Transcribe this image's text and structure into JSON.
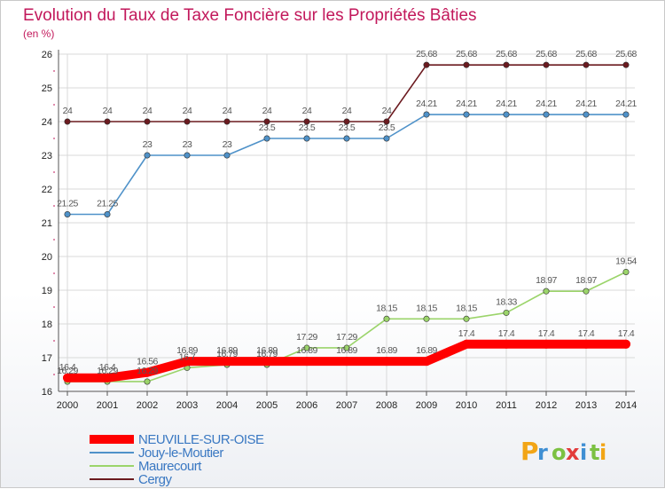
{
  "chart_data": {
    "type": "line",
    "title": "Evolution du Taux de Taxe Foncière sur les Propriétés Bâties",
    "subtitle": "(en %)",
    "x": [
      "2000",
      "2001",
      "2002",
      "2003",
      "2004",
      "2005",
      "2006",
      "2007",
      "2008",
      "2009",
      "2010",
      "2011",
      "2012",
      "2013",
      "2014"
    ],
    "ylim": [
      16,
      26
    ],
    "yticks": [
      "16",
      "17",
      "18",
      "19",
      "20",
      "21",
      "22",
      "23",
      "24",
      "25",
      "26"
    ],
    "grid": true,
    "legend_position": "bottom-left",
    "series": [
      {
        "name": "Cergy",
        "color": "#6b1a1f",
        "values": [
          24,
          24,
          24,
          24,
          24,
          24,
          24,
          24,
          24,
          25.68,
          25.68,
          25.68,
          25.68,
          25.68,
          25.68
        ],
        "labels": [
          "24",
          "24",
          "24",
          "24",
          "24",
          "24",
          "24",
          "24",
          "24",
          "25.68",
          "25.68",
          "25.68",
          "25.68",
          "25.68",
          "25.68"
        ]
      },
      {
        "name": "Jouy-le-Moutier",
        "color": "#4f92c9",
        "values": [
          21.25,
          21.25,
          23,
          23,
          23,
          23.5,
          23.5,
          23.5,
          23.5,
          24.21,
          24.21,
          24.21,
          24.21,
          24.21,
          24.21
        ],
        "labels": [
          "21.25",
          "21.25",
          "23",
          "23",
          "23",
          "23.5",
          "23.5",
          "23.5",
          "23.5",
          "24.21",
          "24.21",
          "24.21",
          "24.21",
          "24.21",
          "24.21"
        ]
      },
      {
        "name": "Maurecourt",
        "color": "#9bd46a",
        "values": [
          16.29,
          16.29,
          16.29,
          16.7,
          16.79,
          16.79,
          17.29,
          17.29,
          18.15,
          18.15,
          18.15,
          18.33,
          18.97,
          18.97,
          19.54
        ],
        "labels": [
          "16.29",
          "16.29",
          "16.29",
          "16.7",
          "16.79",
          "16.79",
          "17.29",
          "17.29",
          "18.15",
          "18.15",
          "18.15",
          "18.33",
          "18.97",
          "18.97",
          "19.54"
        ]
      },
      {
        "name": "NEUVILLE-SUR-OISE",
        "color": "#ff0000",
        "values": [
          16.4,
          16.4,
          16.56,
          16.89,
          16.89,
          16.89,
          16.89,
          16.89,
          16.89,
          16.89,
          17.4,
          17.4,
          17.4,
          17.4,
          17.4
        ],
        "labels": [
          "16.4",
          "16.4",
          "16.56",
          "16.89",
          "16.89",
          "16.89",
          "16.89",
          "16.89",
          "16.89",
          "16.89",
          "17.4",
          "17.4",
          "17.4",
          "17.4",
          "17.4"
        ]
      }
    ],
    "legend_order": [
      "NEUVILLE-SUR-OISE",
      "Jouy-le-Moutier",
      "Maurecourt",
      "Cergy"
    ]
  },
  "brand": {
    "letters": [
      "P",
      "r",
      "o",
      "x",
      "i",
      "t",
      "i"
    ],
    "colors": [
      "#f2a516",
      "#3f8fd3",
      "#7cc142",
      "#e23b3b",
      "#3f8fd3",
      "#7cc142",
      "#f2a516"
    ]
  },
  "colors": {
    "title": "#c2185b",
    "legend_text": "#3a78c2",
    "grid": "#d9d9d9",
    "axis": "#555555",
    "minor_tick": "#c2185b"
  }
}
